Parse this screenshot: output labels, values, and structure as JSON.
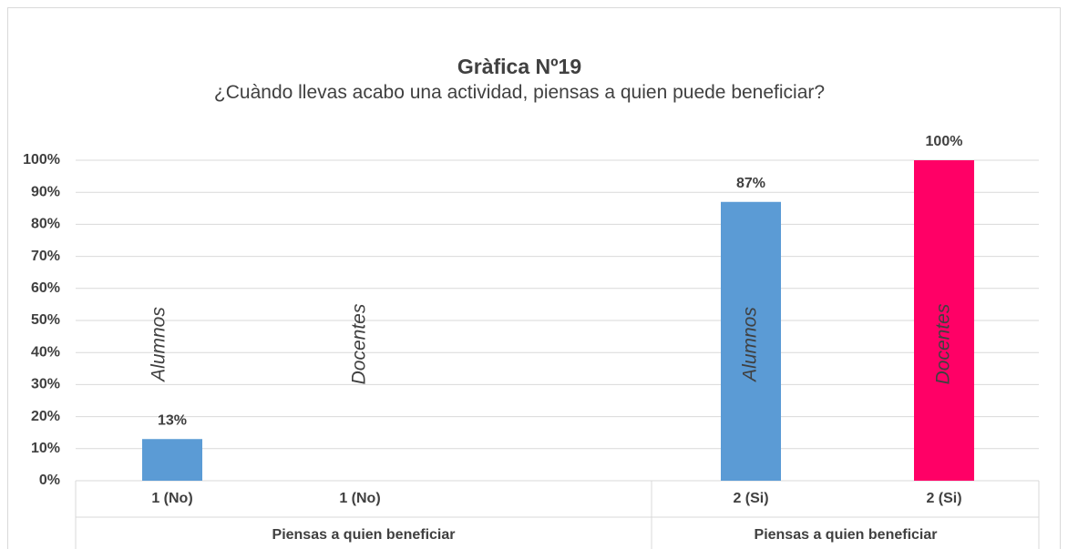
{
  "chart_data": {
    "type": "bar",
    "title": "Gràfica Nº19",
    "subtitle": "¿Cuàndo llevas acabo una actividad, piensas a quien puede beneficiar?",
    "categories": [
      "1 (No)",
      "1 (No)",
      "2 (Si)",
      "2 (Si)"
    ],
    "groups": [
      "Piensas a quien beneficiar",
      "Piensas a quien beneficiar"
    ],
    "bar_labels": [
      "Alumnos",
      "Docentes",
      "Alumnos",
      "Docentes"
    ],
    "values": [
      13,
      0,
      87,
      100
    ],
    "value_labels": [
      "13%",
      null,
      "87%",
      "100%"
    ],
    "colors": [
      "#5b9bd5",
      "#ff0066",
      "#5b9bd5",
      "#ff0066"
    ],
    "ylim": [
      0,
      100
    ],
    "yticks": [
      {
        "value": 0,
        "label": "0%"
      },
      {
        "value": 10,
        "label": "10%"
      },
      {
        "value": 20,
        "label": "20%"
      },
      {
        "value": 30,
        "label": "30%"
      },
      {
        "value": 40,
        "label": "40%"
      },
      {
        "value": 50,
        "label": "50%"
      },
      {
        "value": 60,
        "label": "60%"
      },
      {
        "value": 70,
        "label": "70%"
      },
      {
        "value": 80,
        "label": "80%"
      },
      {
        "value": 90,
        "label": "90%"
      },
      {
        "value": 100,
        "label": "100%"
      }
    ],
    "grid": true
  }
}
